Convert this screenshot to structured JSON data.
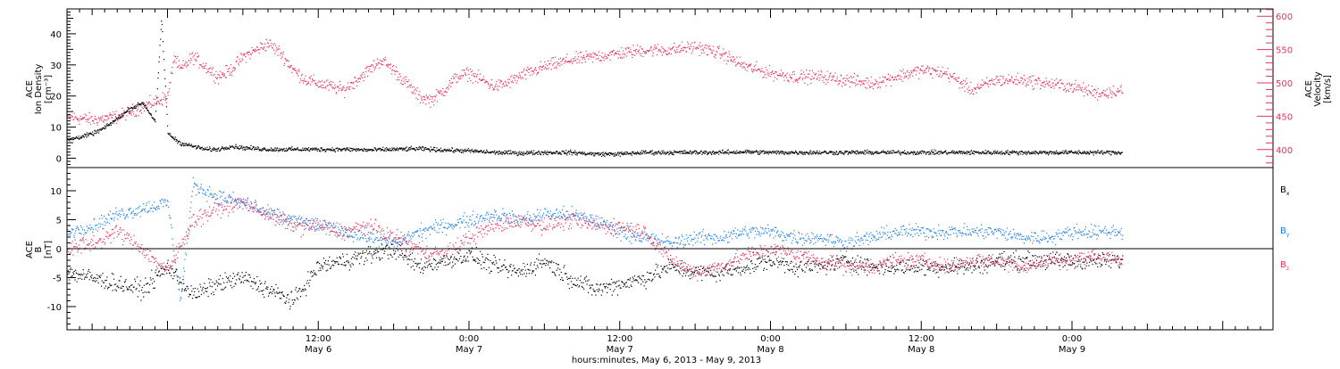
{
  "colors": {
    "black": "#000000",
    "pink": "#e8325a",
    "blue": "#1a7fe6"
  },
  "x_axis": {
    "xlim_hours": [
      0,
      96
    ],
    "major_ticks": [
      {
        "hour": 20,
        "top": "12:00",
        "bottom": "May 6"
      },
      {
        "hour": 32,
        "top": "0:00",
        "bottom": "May 7"
      },
      {
        "hour": 44,
        "top": "12:00",
        "bottom": "May 7"
      },
      {
        "hour": 56,
        "top": "0:00",
        "bottom": "May 8"
      },
      {
        "hour": 68,
        "top": "12:00",
        "bottom": "May 8"
      },
      {
        "hour": 80,
        "top": "0:00",
        "bottom": "May 9"
      }
    ],
    "title": "hours:minutes, May  6, 2013 - May  9, 2013"
  },
  "chart_data": [
    {
      "type": "scatter",
      "panel": "top",
      "left_axis": {
        "label_lines": [
          "ACE",
          "Ion Density",
          "[cm⁻³]"
        ],
        "ylim": [
          -3,
          48
        ],
        "ticks": [
          0,
          10,
          20,
          30,
          40
        ],
        "tick_labels": [
          "0",
          "10",
          "20",
          "30",
          "40"
        ]
      },
      "right_axis": {
        "label_lines": [
          "ACE",
          "Velocity",
          "[km/s]"
        ],
        "ylim": [
          373,
          611
        ],
        "ticks": [
          400,
          450,
          500,
          550,
          600
        ],
        "tick_labels": [
          "400",
          "450",
          "500",
          "550",
          "600"
        ],
        "color": "#e8325a"
      },
      "series": [
        {
          "role": "ion-density",
          "axis": "left",
          "color": "#000000",
          "x": [
            0,
            1,
            2,
            3,
            4,
            5,
            6,
            7,
            7.5,
            8,
            9,
            10,
            11,
            12,
            13,
            14,
            16,
            18,
            20,
            22,
            24,
            26,
            28,
            30,
            32,
            34,
            36,
            38,
            40,
            42,
            44,
            46,
            48,
            50,
            52,
            54,
            56,
            58,
            60,
            62,
            64,
            66,
            68,
            70,
            72,
            74,
            76,
            78,
            80,
            82,
            84
          ],
          "y": [
            6,
            7,
            8,
            10,
            13,
            16,
            18,
            12,
            45,
            8,
            5,
            4,
            3,
            3,
            4,
            3.5,
            3,
            3,
            3,
            3,
            2.8,
            3,
            3.2,
            2.8,
            2.5,
            2,
            1.8,
            2,
            2,
            1.5,
            1.5,
            2,
            2,
            2,
            2,
            2.2,
            2,
            2,
            2,
            2,
            2,
            2,
            2,
            2,
            2,
            2,
            2,
            2,
            2,
            2,
            2
          ],
          "jitter": 1.0
        },
        {
          "role": "velocity",
          "axis": "right",
          "color": "#e8325a",
          "x": [
            0,
            2,
            4,
            6,
            8,
            8.5,
            9,
            10,
            11,
            12,
            13,
            14,
            15,
            16,
            17,
            18,
            19,
            20,
            21,
            22,
            23,
            24,
            25,
            26,
            27,
            28,
            29,
            30,
            31,
            32,
            33,
            34,
            35,
            36,
            38,
            40,
            42,
            44,
            46,
            48,
            50,
            52,
            54,
            56,
            58,
            60,
            62,
            64,
            66,
            68,
            70,
            72,
            74,
            76,
            78,
            80,
            82,
            84
          ],
          "y": [
            450,
            445,
            450,
            465,
            480,
            540,
            520,
            540,
            525,
            510,
            520,
            540,
            550,
            560,
            545,
            520,
            505,
            500,
            495,
            490,
            505,
            520,
            535,
            520,
            500,
            480,
            475,
            490,
            510,
            515,
            505,
            495,
            500,
            510,
            525,
            535,
            540,
            545,
            550,
            550,
            555,
            545,
            525,
            515,
            510,
            510,
            505,
            500,
            510,
            520,
            515,
            490,
            505,
            505,
            500,
            495,
            485,
            490
          ],
          "jitter": 14
        }
      ]
    },
    {
      "type": "scatter",
      "panel": "bottom",
      "left_axis": {
        "label_lines": [
          "ACE",
          "B",
          "[nT]"
        ],
        "ylim": [
          -14,
          14
        ],
        "ticks": [
          -10,
          -5,
          0,
          5,
          10
        ],
        "tick_labels": [
          "-10",
          "-5",
          "0",
          "5",
          "10"
        ]
      },
      "zero_line": true,
      "legend": {
        "placement": "right",
        "entries": [
          {
            "label": "B",
            "sub": "x",
            "color": "#000000"
          },
          {
            "label": "B",
            "sub": "y",
            "color": "#1a7fe6"
          },
          {
            "label": "B",
            "sub": "z",
            "color": "#e8325a"
          }
        ]
      },
      "series": [
        {
          "name": "Bx",
          "color": "#000000",
          "x": [
            0,
            2,
            4,
            6,
            8,
            10,
            12,
            14,
            16,
            18,
            20,
            22,
            24,
            26,
            28,
            30,
            32,
            34,
            36,
            38,
            40,
            42,
            44,
            46,
            48,
            50,
            52,
            54,
            56,
            58,
            60,
            62,
            64,
            66,
            68,
            70,
            72,
            74,
            76,
            78,
            80,
            82,
            84
          ],
          "y": [
            -4,
            -5,
            -6,
            -7,
            -3,
            -8,
            -6,
            -5,
            -7,
            -9,
            -3,
            -2,
            -1,
            0,
            -3,
            -2,
            -1,
            -3,
            -4,
            -2,
            -5,
            -7,
            -6,
            -5,
            -3,
            -4,
            -4,
            -3,
            -2,
            -3,
            -3,
            -2,
            -3,
            -3,
            -3,
            -3,
            -3,
            -2,
            -2,
            -2,
            -2,
            -2,
            -2
          ],
          "jitter": 2.2
        },
        {
          "name": "By",
          "color": "#1a7fe6",
          "x": [
            0,
            2,
            4,
            6,
            8,
            9,
            10,
            11,
            12,
            14,
            16,
            18,
            20,
            22,
            24,
            26,
            28,
            30,
            32,
            34,
            36,
            38,
            40,
            42,
            44,
            46,
            48,
            50,
            52,
            54,
            56,
            58,
            60,
            62,
            64,
            66,
            68,
            70,
            72,
            74,
            76,
            78,
            80,
            82,
            84
          ],
          "y": [
            3,
            4,
            6,
            7,
            8,
            -9,
            11,
            10,
            9,
            8,
            6,
            5,
            4,
            3,
            2,
            1,
            3,
            4,
            5,
            6,
            5,
            6,
            6,
            5,
            3,
            2,
            1,
            2,
            2,
            3,
            3,
            2,
            2,
            1,
            2,
            3,
            3,
            3,
            3,
            3,
            2,
            2,
            3,
            3,
            3
          ],
          "jitter": 1.8
        },
        {
          "name": "Bz",
          "color": "#e8325a",
          "x": [
            0,
            2,
            4,
            6,
            8,
            10,
            12,
            14,
            16,
            18,
            20,
            22,
            24,
            26,
            28,
            30,
            32,
            34,
            36,
            38,
            40,
            42,
            44,
            46,
            48,
            50,
            52,
            54,
            56,
            58,
            60,
            62,
            64,
            66,
            68,
            70,
            72,
            74,
            76,
            78,
            80,
            82,
            84
          ],
          "y": [
            0,
            1,
            3,
            0,
            -4,
            5,
            7,
            8,
            6,
            4,
            4,
            3,
            4,
            2,
            0,
            -1,
            2,
            4,
            5,
            4,
            5,
            4,
            4,
            3,
            -2,
            -4,
            -3,
            -1,
            0,
            -1,
            -2,
            -3,
            -3,
            -2,
            -2,
            -3,
            -2,
            -2,
            -3,
            -2,
            -2,
            -1,
            -2
          ],
          "jitter": 2.0
        }
      ]
    }
  ]
}
